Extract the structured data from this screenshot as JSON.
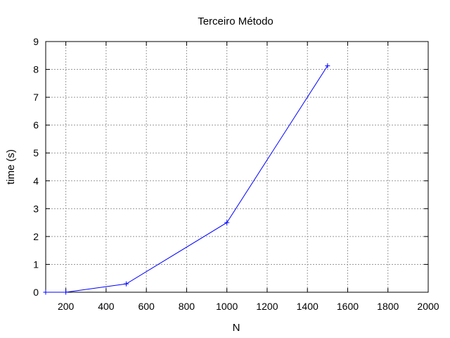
{
  "chart_data": {
    "type": "line",
    "title": "Terceiro Método",
    "xlabel": "N",
    "ylabel": "time (s)",
    "xlim": [
      100,
      2000
    ],
    "ylim": [
      0,
      9
    ],
    "xticks": [
      200,
      400,
      600,
      800,
      1000,
      1200,
      1400,
      1600,
      1800,
      2000
    ],
    "yticks": [
      0,
      1,
      2,
      3,
      4,
      5,
      6,
      7,
      8,
      9
    ],
    "grid": true,
    "series": [
      {
        "color": "#0000ff",
        "marker": "plus",
        "x": [
          100,
          200,
          500,
          1000,
          1500
        ],
        "y": [
          0.0,
          0.0,
          0.3,
          2.5,
          8.13
        ]
      }
    ]
  }
}
